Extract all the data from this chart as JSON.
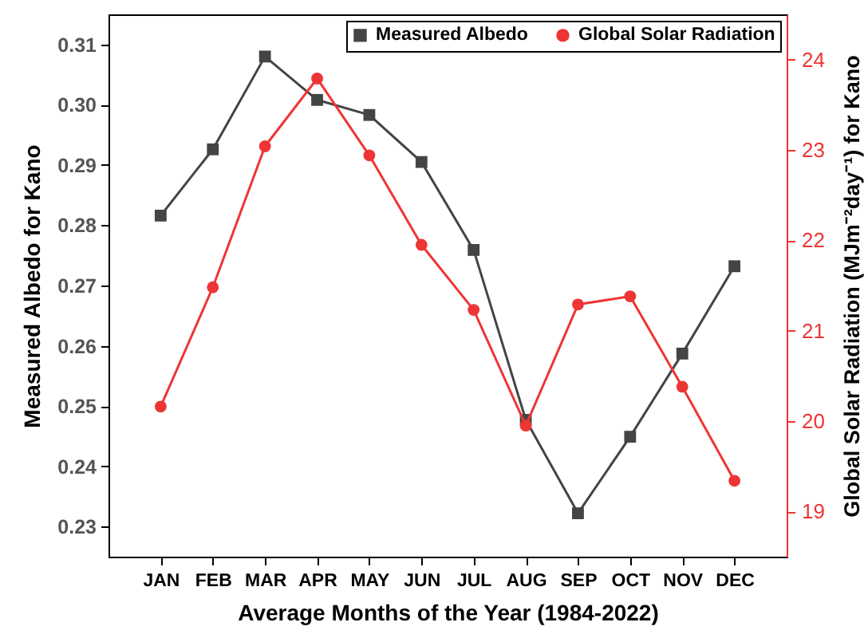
{
  "chart_data": {
    "type": "line",
    "xlabel": "Average Months of the Year (1984-2022)",
    "ylabel": "Measured Albedo for Kano",
    "y2label": "Global Solar Radiation (MJm⁻²day⁻¹) for Kano",
    "categories": [
      "JAN",
      "FEB",
      "MAR",
      "APR",
      "MAY",
      "JUN",
      "JUL",
      "AUG",
      "SEP",
      "OCT",
      "NOV",
      "DEC"
    ],
    "series": [
      {
        "name": "Measured Albedo",
        "color": "#444444",
        "marker": "square",
        "values": [
          0.2816,
          0.2926,
          0.308,
          0.3008,
          0.2983,
          0.2905,
          0.2759,
          0.2477,
          0.2322,
          0.2449,
          0.2587,
          0.2732
        ]
      },
      {
        "name": "Global Solar Radiation",
        "color": "#ee3535",
        "marker": "circle",
        "axis": "y2",
        "values": [
          20.16,
          21.48,
          23.04,
          23.79,
          22.94,
          21.95,
          21.23,
          19.95,
          21.29,
          21.38,
          20.38,
          19.34
        ]
      }
    ],
    "ylim": [
      0.225,
      0.315
    ],
    "yticks": [
      0.23,
      0.24,
      0.25,
      0.26,
      0.27,
      0.28,
      0.29,
      {
        "value": 0.3,
        "label": "0.30"
      },
      0.31
    ],
    "y2lim": [
      18.5,
      24.5
    ],
    "y2ticks": [
      19,
      20,
      21,
      22,
      23,
      24
    ],
    "grid": false,
    "legend": "top right"
  }
}
